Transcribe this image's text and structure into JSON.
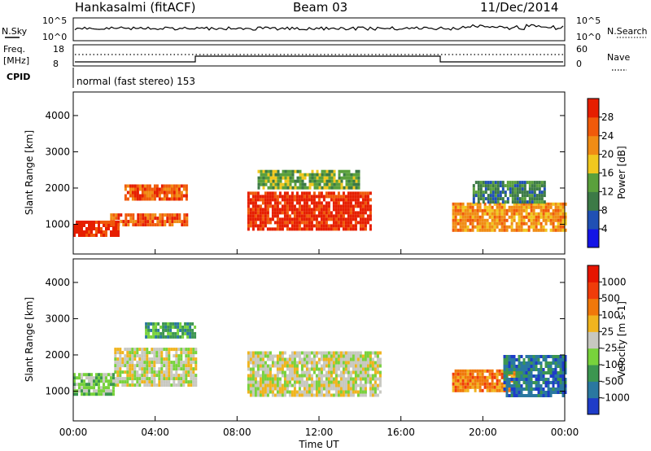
{
  "header": {
    "station": "Hankasalmi (fitACF)",
    "beam": "Beam 03",
    "date": "11/Dec/2014"
  },
  "top_panels": {
    "nsky_label": "N.Sky",
    "nsky_ticks": [
      "10^5",
      "10^0"
    ],
    "nsearch_label": "N.Search",
    "nsearch_ticks": [
      "10^5",
      "10^0"
    ],
    "freq_label": "Freq.",
    "freq_unit": "[MHz]",
    "freq_ticks": [
      "18",
      "8"
    ],
    "nave_label": "Nave",
    "nave_ticks": [
      "60",
      "0"
    ],
    "cpid_label": "CPID",
    "cpid_text": "normal (fast stereo) 153"
  },
  "chart_data": [
    {
      "type": "heatmap",
      "name": "power",
      "ylabel": "Slant Range [km]",
      "xlabel": "Time UT",
      "x_ticks": [
        "00:00",
        "04:00",
        "08:00",
        "12:00",
        "16:00",
        "20:00",
        "00:00"
      ],
      "x_range_hours": [
        0,
        24
      ],
      "y_ticks": [
        1000,
        2000,
        3000,
        4000
      ],
      "ylim": [
        180,
        4650
      ],
      "colorbar_label": "Power [dB]",
      "colorbar_ticks": [
        "28",
        "24",
        "20",
        "16",
        "12",
        "8",
        "4"
      ],
      "colors": [
        "#1414e6",
        "#2050b4",
        "#3c7a46",
        "#5aa03c",
        "#f0c81e",
        "#f08c14",
        "#f05a0a",
        "#e61e00"
      ],
      "regions": [
        {
          "t0": 0.0,
          "t1": 2.2,
          "r0": 700,
          "r1": 1100,
          "level": 7
        },
        {
          "t0": 1.8,
          "t1": 5.5,
          "r0": 1000,
          "r1": 1300,
          "level": 6
        },
        {
          "t0": 2.5,
          "t1": 5.5,
          "r0": 1700,
          "r1": 2100,
          "level": 6
        },
        {
          "t0": 8.5,
          "t1": 14.5,
          "r0": 900,
          "r1": 1900,
          "level": 7
        },
        {
          "t0": 9.0,
          "t1": 14.0,
          "r0": 2000,
          "r1": 2500,
          "level": 3
        },
        {
          "t0": 18.5,
          "t1": 24.0,
          "r0": 800,
          "r1": 1600,
          "level": 5
        },
        {
          "t0": 19.5,
          "t1": 23.0,
          "r0": 1600,
          "r1": 2200,
          "level": 2
        }
      ]
    },
    {
      "type": "heatmap",
      "name": "velocity",
      "ylabel": "Slant Range [km]",
      "xlabel": "Time UT",
      "x_ticks": [
        "00:00",
        "04:00",
        "08:00",
        "12:00",
        "16:00",
        "20:00",
        "00:00"
      ],
      "x_range_hours": [
        0,
        24
      ],
      "y_ticks": [
        1000,
        2000,
        3000,
        4000
      ],
      "ylim": [
        180,
        4650
      ],
      "colorbar_label": "Velocity [m s-1]",
      "colorbar_ticks": [
        "1000",
        "500",
        "100",
        "25",
        "-25",
        "-100",
        "-500",
        "-1000"
      ],
      "colors": [
        "#1e3cc8",
        "#2a78a0",
        "#3c9650",
        "#78d23c",
        "#c8c8c0",
        "#f0b41e",
        "#f0780a",
        "#f03c0a",
        "#e61400"
      ],
      "regions": [
        {
          "t0": 2.0,
          "t1": 6.0,
          "r0": 1200,
          "r1": 2200,
          "level": 4
        },
        {
          "t0": 8.5,
          "t1": 15.0,
          "r0": 900,
          "r1": 2100,
          "level": 4
        },
        {
          "t0": 0.0,
          "t1": 2.0,
          "r0": 900,
          "r1": 1500,
          "level": 3
        },
        {
          "t0": 18.5,
          "t1": 21.5,
          "r0": 1000,
          "r1": 1600,
          "level": 6
        },
        {
          "t0": 21.0,
          "t1": 24.0,
          "r0": 900,
          "r1": 2000,
          "level": 1
        },
        {
          "t0": 3.5,
          "t1": 6.0,
          "r0": 2500,
          "r1": 2900,
          "level": 2
        }
      ]
    }
  ]
}
